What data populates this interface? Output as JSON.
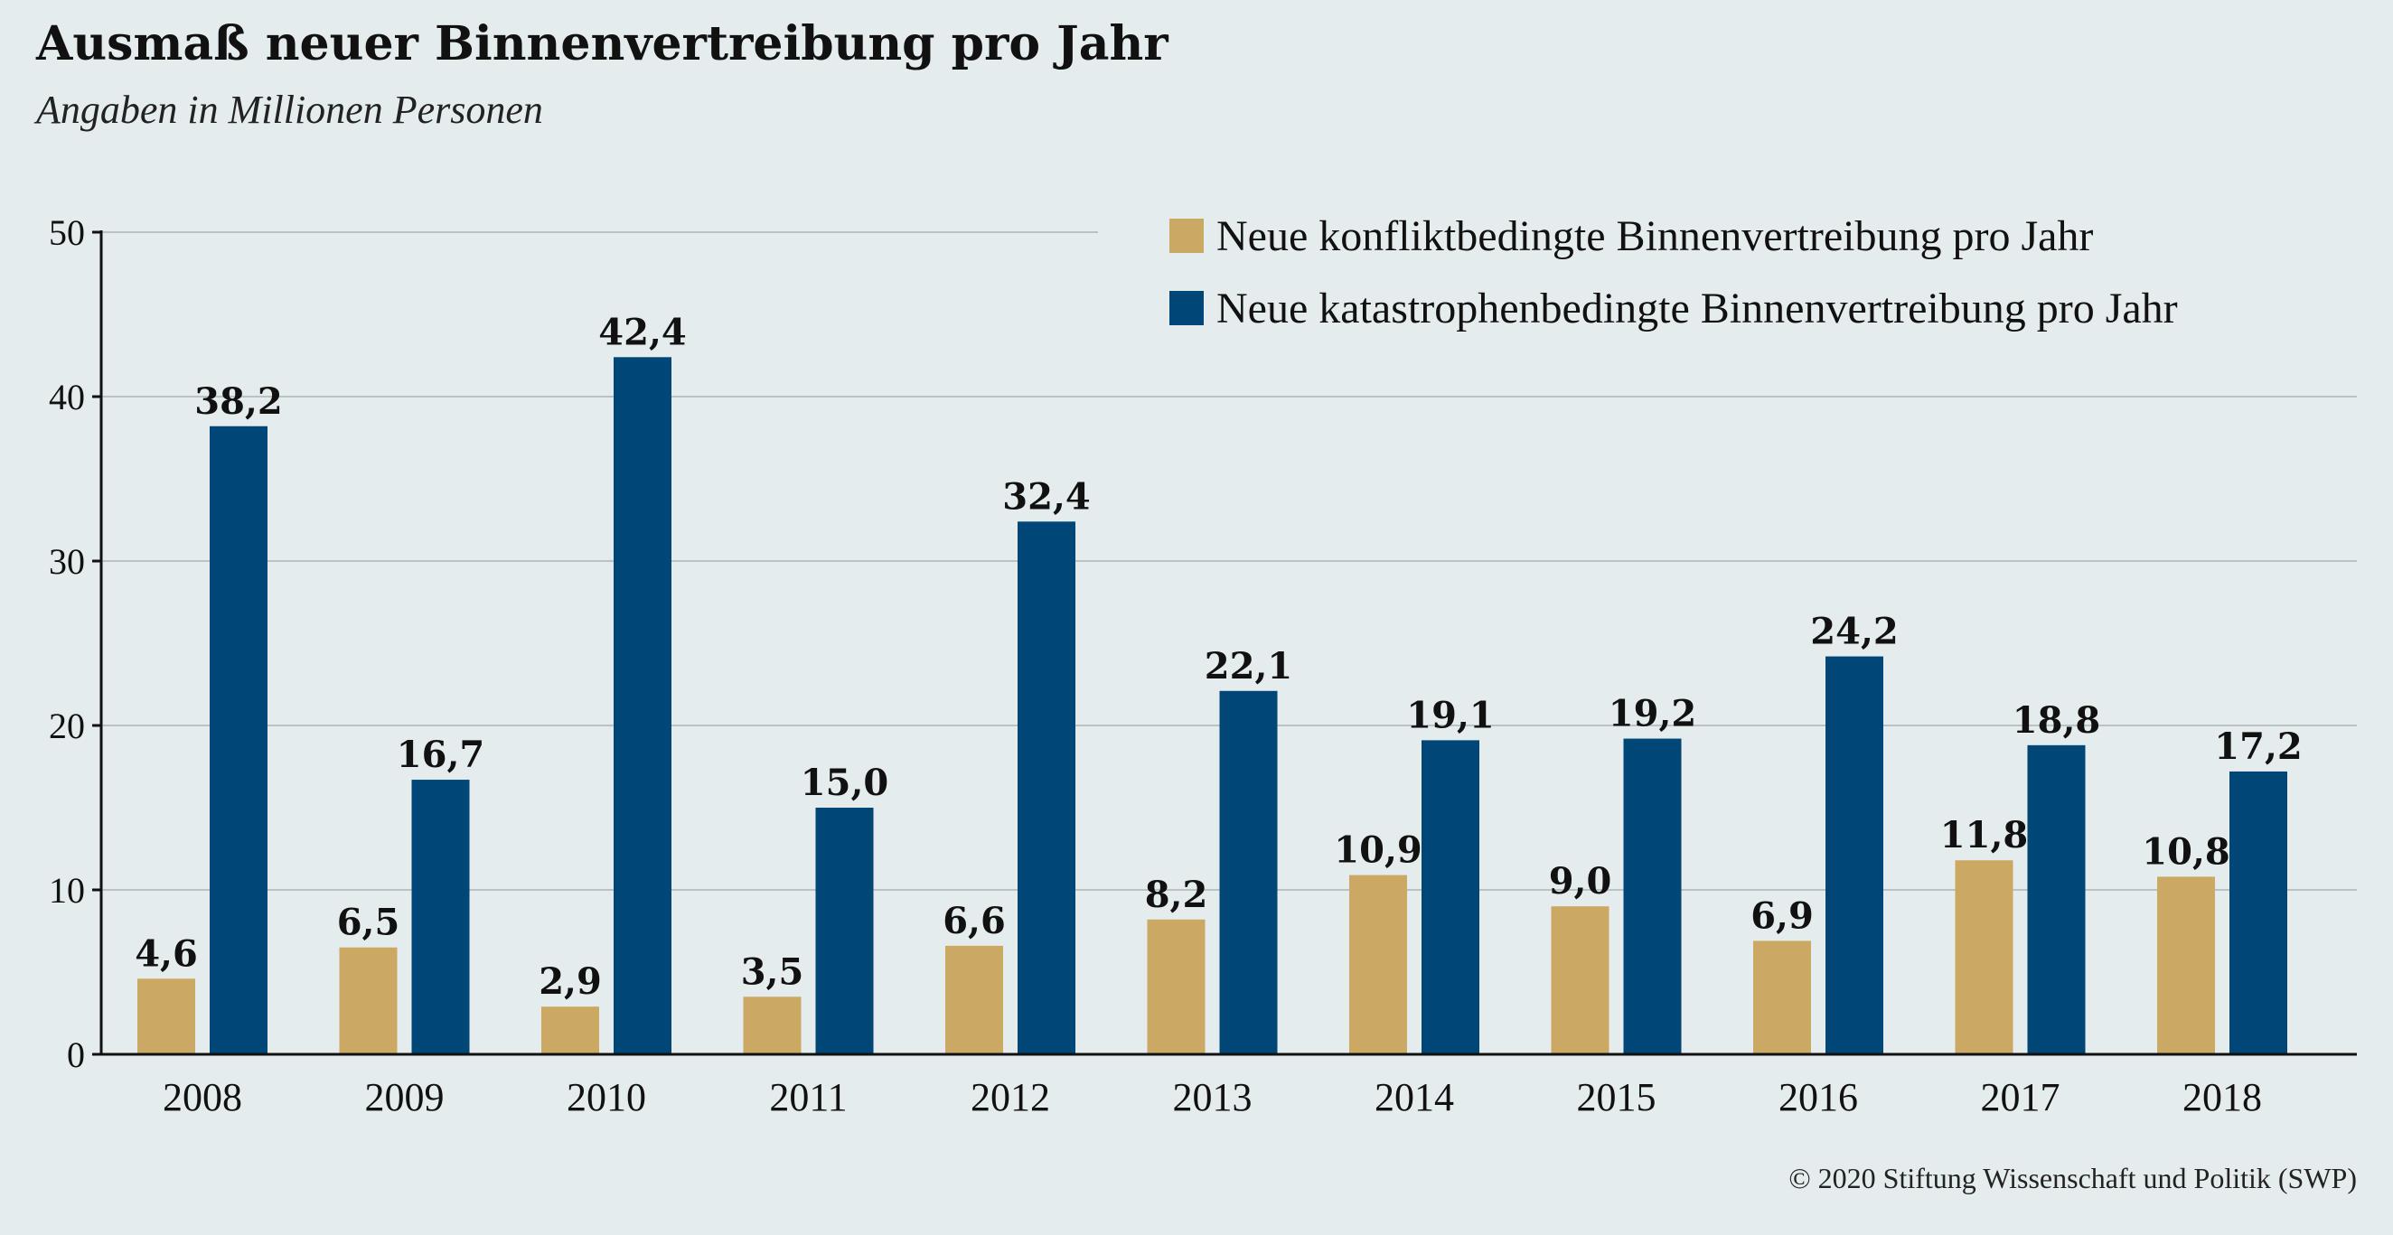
{
  "title": "Ausmaß neuer Binnenvertreibung pro Jahr",
  "subtitle": "Angaben in Millionen Personen",
  "copyright": "© 2020 Stiftung Wissenschaft und Politik (SWP)",
  "colors": {
    "background": "#e4ecee",
    "conflict": "#cba962",
    "disaster": "#004677",
    "grid": "#b9c3c6",
    "axis": "#111111",
    "text": "#111111"
  },
  "chart_data": {
    "type": "bar",
    "title": "Ausmaß neuer Binnenvertreibung pro Jahr",
    "subtitle": "Angaben in Millionen Personen",
    "xlabel": "",
    "ylabel": "",
    "categories": [
      "2008",
      "2009",
      "2010",
      "2011",
      "2012",
      "2013",
      "2014",
      "2015",
      "2016",
      "2017",
      "2018"
    ],
    "series": [
      {
        "name": "Neue konfliktbedingte Binnenvertreibung pro Jahr",
        "color": "#cba962",
        "values": [
          4.6,
          6.5,
          2.9,
          3.5,
          6.6,
          8.2,
          10.9,
          9.0,
          6.9,
          11.8,
          10.8
        ],
        "labels": [
          "4,6",
          "6,5",
          "2,9",
          "3,5",
          "6,6",
          "8,2",
          "10,9",
          "9,0",
          "6,9",
          "11,8",
          "10,8"
        ]
      },
      {
        "name": "Neue katastrophenbedingte Binnenvertreibung pro Jahr",
        "color": "#004677",
        "values": [
          38.2,
          16.7,
          42.4,
          15.0,
          32.4,
          22.1,
          19.1,
          19.2,
          24.2,
          18.8,
          17.2
        ],
        "labels": [
          "38,2",
          "16,7",
          "42,4",
          "15,0",
          "32,4",
          "22,1",
          "19,1",
          "19,2",
          "24,2",
          "18,8",
          "17,2"
        ]
      }
    ],
    "ylim": [
      0,
      50
    ],
    "yticks": [
      0,
      10,
      20,
      30,
      40,
      50
    ],
    "ytick_labels": [
      "0",
      "10",
      "20",
      "30",
      "40",
      "50"
    ],
    "grid": true,
    "legend_position": "top-right"
  }
}
